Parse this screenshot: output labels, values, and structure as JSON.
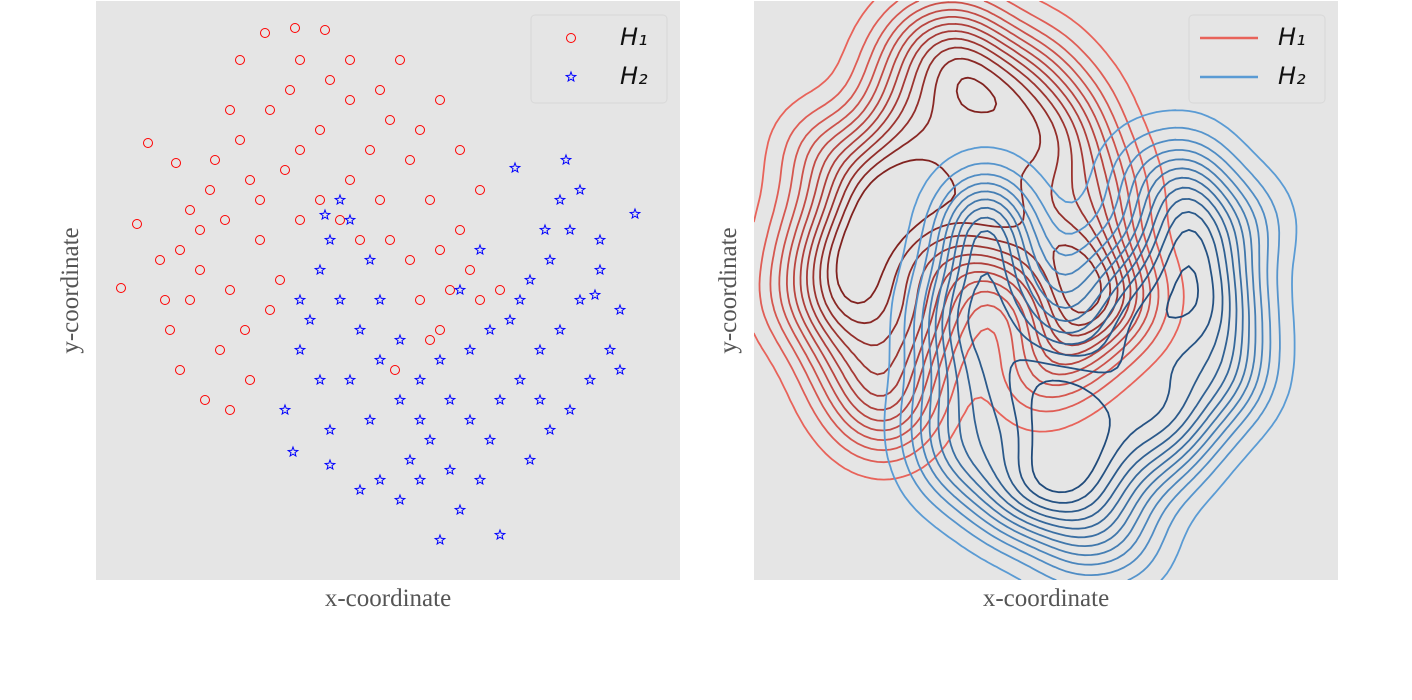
{
  "chart_data": [
    {
      "type": "scatter",
      "xlabel": "x-coordinate",
      "ylabel": "y-coordinate",
      "xlim": [
        0,
        584
      ],
      "ylim": [
        0,
        579
      ],
      "legend": "upper right",
      "series": [
        {
          "name": "H₁",
          "color": "#ff0000",
          "marker": "circle",
          "x": [
            25,
            52,
            41,
            80,
            64,
            94,
            84,
            109,
            134,
            124,
            104,
            114,
            144,
            154,
            174,
            194,
            204,
            224,
            234,
            254,
            274,
            294,
            314,
            334,
            344,
            364,
            384,
            374,
            354,
            324,
            334,
            384,
            404,
            304,
            169,
            199,
            229,
            144,
            164,
            184,
            204,
            224,
            254,
            284,
            294,
            314,
            264,
            174,
            149,
            134,
            84,
            69,
            104,
            119,
            164,
            244,
            344,
            364,
            134,
            204,
            254,
            284,
            324,
            299,
            344,
            129,
            94,
            74,
            154,
            189
          ],
          "y": [
            292,
            437,
            356,
            417,
            320,
            280,
            210,
            180,
            170,
            230,
            350,
            390,
            440,
            400,
            470,
            490,
            430,
            450,
            500,
            480,
            430,
            460,
            420,
            380,
            330,
            350,
            390,
            310,
            290,
            280,
            240,
            280,
            290,
            520,
            547,
            552,
            550,
            520,
            340,
            300,
            360,
            380,
            400,
            380,
            340,
            320,
            340,
            270,
            250,
            290,
            330,
            280,
            310,
            420,
            380,
            360,
            480,
            430,
            470,
            520,
            520,
            490,
            450,
            210,
            250,
            360,
            370,
            250,
            200,
            410
          ]
        },
        {
          "name": "H₂",
          "color": "#0000ff",
          "marker": "star",
          "x": [
            197,
            189,
            204,
            204,
            224,
            234,
            254,
            274,
            284,
            264,
            254,
            234,
            274,
            304,
            324,
            334,
            354,
            374,
            394,
            384,
            364,
            344,
            304,
            284,
            264,
            234,
            404,
            424,
            444,
            464,
            484,
            504,
            524,
            514,
            494,
            474,
            454,
            434,
            404,
            424,
            454,
            474,
            484,
            470,
            464,
            504,
            539,
            524,
            419,
            394,
            374,
            354,
            324,
            314,
            304,
            284,
            244,
            214,
            224,
            444,
            414,
            434,
            344,
            364,
            244,
            229,
            384,
            449,
            499,
            324
          ],
          "y": [
            128,
            170,
            230,
            280,
            310,
            340,
            360,
            320,
            280,
            250,
            200,
            150,
            160,
            180,
            200,
            140,
            110,
            160,
            140,
            100,
            70,
            40,
            80,
            100,
            90,
            115,
            180,
            200,
            230,
            250,
            280,
            310,
            270,
            230,
            200,
            170,
            150,
            120,
            45,
            280,
            320,
            350,
            390,
            420,
            380,
            340,
            366,
            210,
            412,
            250,
            230,
            180,
            160,
            120,
            240,
            220,
            280,
            260,
            200,
            180,
            260,
            300,
            220,
            290,
            380,
            365,
            330,
            350,
            285,
            100
          ]
        }
      ]
    },
    {
      "type": "kde",
      "xlabel": "x-coordinate",
      "ylabel": "y-coordinate",
      "xlim": [
        -21,
        642
      ],
      "ylim": [
        8,
        587
      ],
      "legend": "upper right",
      "series": [
        {
          "name": "H₁",
          "color": "#e8635a",
          "x": [
            25,
            52,
            41,
            80,
            64,
            94,
            84,
            109,
            134,
            124,
            104,
            114,
            144,
            154,
            174,
            194,
            204,
            224,
            234,
            254,
            274,
            294,
            314,
            334,
            344,
            364,
            384,
            374,
            354,
            324,
            334,
            384,
            404,
            304,
            169,
            199,
            229,
            144,
            164,
            184,
            204,
            224,
            254,
            284,
            294,
            314,
            264,
            174,
            149,
            134,
            84,
            69,
            104,
            119,
            164,
            244,
            344,
            364,
            134,
            204,
            254,
            284,
            324,
            299,
            344,
            129,
            94,
            74,
            154,
            189
          ],
          "y": [
            292,
            437,
            356,
            417,
            320,
            280,
            210,
            180,
            170,
            230,
            350,
            390,
            440,
            400,
            470,
            490,
            430,
            450,
            500,
            480,
            430,
            460,
            420,
            380,
            330,
            350,
            390,
            310,
            290,
            280,
            240,
            280,
            290,
            520,
            547,
            552,
            550,
            520,
            340,
            300,
            360,
            380,
            400,
            380,
            340,
            320,
            340,
            270,
            250,
            290,
            330,
            280,
            310,
            420,
            380,
            360,
            480,
            430,
            470,
            520,
            520,
            490,
            450,
            210,
            250,
            360,
            370,
            250,
            200,
            410
          ]
        },
        {
          "name": "H₂",
          "color": "#5a9bd4",
          "x": [
            197,
            189,
            204,
            204,
            224,
            234,
            254,
            274,
            284,
            264,
            254,
            234,
            274,
            304,
            324,
            334,
            354,
            374,
            394,
            384,
            364,
            344,
            304,
            284,
            264,
            234,
            404,
            424,
            444,
            464,
            484,
            504,
            524,
            514,
            494,
            474,
            454,
            434,
            404,
            424,
            454,
            474,
            484,
            470,
            464,
            504,
            539,
            524,
            419,
            394,
            374,
            354,
            324,
            314,
            304,
            284,
            244,
            214,
            224,
            444,
            414,
            434,
            344,
            364,
            244,
            229,
            384,
            449,
            499,
            324
          ],
          "y": [
            128,
            170,
            230,
            280,
            310,
            340,
            360,
            320,
            280,
            250,
            200,
            150,
            160,
            180,
            200,
            140,
            110,
            160,
            140,
            100,
            70,
            40,
            80,
            100,
            90,
            115,
            180,
            200,
            230,
            250,
            280,
            310,
            270,
            230,
            200,
            170,
            150,
            120,
            45,
            280,
            320,
            350,
            390,
            420,
            380,
            340,
            366,
            210,
            412,
            250,
            230,
            180,
            160,
            120,
            240,
            220,
            280,
            260,
            200,
            180,
            260,
            300,
            220,
            290,
            380,
            365,
            330,
            350,
            285,
            100
          ]
        }
      ]
    }
  ]
}
